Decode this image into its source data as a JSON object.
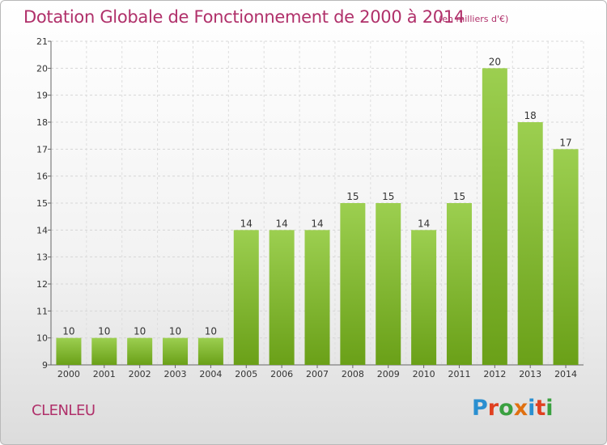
{
  "header": {
    "title": "Dotation Globale de Fonctionnement de 2000 à 2014",
    "subtitle": "(en milliers d'€)"
  },
  "footer": {
    "commune": "CLENLEU",
    "logo": "Proxiti",
    "logo_colors": [
      "#2a8fd0",
      "#e04020",
      "#3aa040",
      "#e07010",
      "#2a8fd0",
      "#e04020",
      "#3aa040"
    ]
  },
  "chart_data": {
    "type": "bar",
    "categories": [
      "2000",
      "2001",
      "2002",
      "2003",
      "2004",
      "2005",
      "2006",
      "2007",
      "2008",
      "2009",
      "2010",
      "2011",
      "2012",
      "2013",
      "2014"
    ],
    "values": [
      10,
      10,
      10,
      10,
      10,
      14,
      14,
      14,
      15,
      15,
      14,
      15,
      20,
      18,
      17
    ],
    "ylim": [
      9,
      21
    ],
    "yticks": [
      9,
      10,
      11,
      12,
      13,
      14,
      15,
      16,
      17,
      18,
      19,
      20,
      21
    ],
    "grid": true,
    "bar_color_top": "#9ccf50",
    "bar_color_bottom": "#6aa018",
    "label_color": "#333333"
  }
}
